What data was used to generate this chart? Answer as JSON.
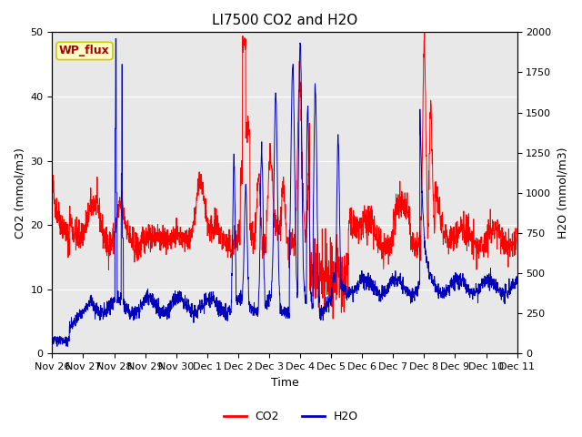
{
  "title": "LI7500 CO2 and H2O",
  "xlabel": "Time",
  "ylabel_left": "CO2 (mmol/m3)",
  "ylabel_right": "H2O (mmol/m3)",
  "co2_color": "#FF0000",
  "h2o_color": "#0000BB",
  "ylim_left": [
    0,
    50
  ],
  "ylim_right": [
    0,
    2000
  ],
  "fig_facecolor": "#FFFFFF",
  "plot_bg_color": "#E8E8E8",
  "legend_co2": "CO2",
  "legend_h2o": "H2O",
  "wp_flux_label": "WP_flux",
  "wp_flux_bg": "#FFFFC8",
  "wp_flux_border": "#CCCC00",
  "wp_flux_text_color": "#AA0000",
  "tick_labels": [
    "Nov 26",
    "Nov 27",
    "Nov 28",
    "Nov 29",
    "Nov 30",
    "Dec 1",
    "Dec 2",
    "Dec 3",
    "Dec 4",
    "Dec 5",
    "Dec 6",
    "Dec 7",
    "Dec 8",
    "Dec 9",
    "Dec 10",
    "Dec 11"
  ],
  "title_fontsize": 11,
  "axis_label_fontsize": 9,
  "tick_fontsize": 8,
  "legend_fontsize": 9,
  "wp_fontsize": 9,
  "grid_color": "#FFFFFF",
  "linewidth": 0.7
}
